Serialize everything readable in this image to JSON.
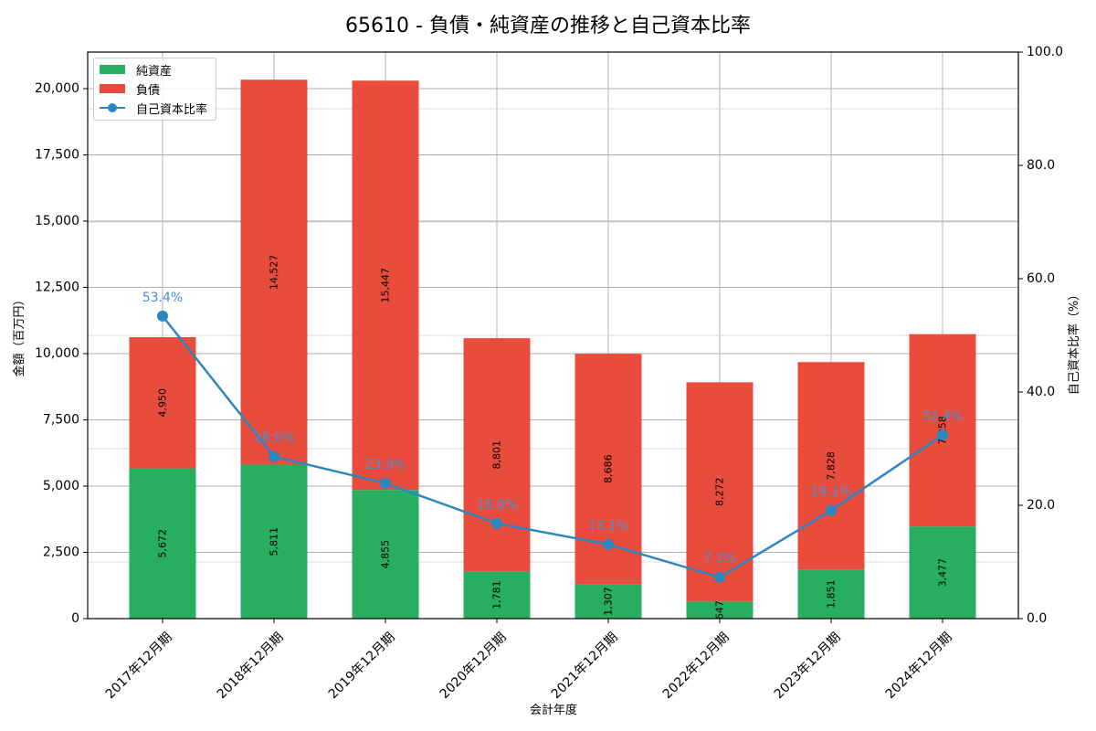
{
  "title": "65610 - 負債・純資産の推移と自己資本比率",
  "colors": {
    "equity": "#27ae60",
    "liabilities": "#e74c3c",
    "ratio": "#2e86c1",
    "grid": "#b0b0b0"
  },
  "legend": {
    "equity": "純資産",
    "liabilities": "負債",
    "ratio": "自己資本比率"
  },
  "axes": {
    "xlabel": "会計年度",
    "ylabel_left": "金額（百万円）",
    "ylabel_right": "自己資本比率（%）",
    "left_ticks": [
      "0",
      "2,500",
      "5,000",
      "7,500",
      "10,000",
      "12,500",
      "15,000",
      "17,500",
      "20,000"
    ],
    "right_ticks": [
      "0.0",
      "20.0",
      "40.0",
      "60.0",
      "80.0",
      "100.0"
    ]
  },
  "chart_data": {
    "type": "bar",
    "stacked": true,
    "title": "65610 - 負債・純資産の推移と自己資本比率",
    "xlabel": "会計年度",
    "ylabel": "金額（百万円）",
    "ylabel_right": "自己資本比率（%）",
    "ylim": [
      0,
      21300
    ],
    "ylim_right": [
      0,
      100
    ],
    "grid": true,
    "legend_position": "upper left",
    "categories": [
      "2017年12月期",
      "2018年12月期",
      "2019年12月期",
      "2020年12月期",
      "2021年12月期",
      "2022年12月期",
      "2023年12月期",
      "2024年12月期"
    ],
    "series": [
      {
        "name": "純資産",
        "type": "bar",
        "axis": "left",
        "values": [
          5672,
          5811,
          4855,
          1781,
          1307,
          647,
          1851,
          3477
        ],
        "labels": [
          "5,672",
          "5,811",
          "4,855",
          "1,781",
          "1,307",
          "647",
          "1,851",
          "3,477"
        ]
      },
      {
        "name": "負債",
        "type": "bar",
        "axis": "left",
        "values": [
          4950,
          14527,
          15447,
          8801,
          8686,
          8272,
          7828,
          7258
        ],
        "labels": [
          "4,950",
          "14,527",
          "15,447",
          "8,801",
          "8,686",
          "8,272",
          "7,828",
          "7,258"
        ]
      },
      {
        "name": "自己資本比率",
        "type": "line",
        "axis": "right",
        "values": [
          53.4,
          28.6,
          23.9,
          16.8,
          13.1,
          7.3,
          19.1,
          32.4
        ],
        "labels": [
          "53.4%",
          "28.6%",
          "23.9%",
          "16.8%",
          "13.1%",
          "7.3%",
          "19.1%",
          "32.4%"
        ]
      }
    ]
  }
}
